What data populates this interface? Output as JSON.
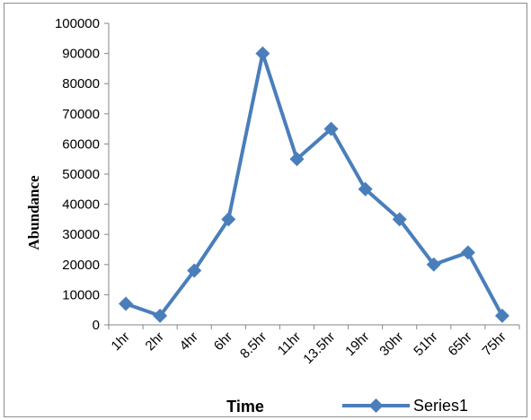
{
  "chart_data": {
    "type": "line",
    "title": "",
    "xlabel": "Time",
    "ylabel": "Abundance",
    "categories": [
      "1hr",
      "2hr",
      "4hr",
      "6hr",
      "8.5hr",
      "11hr",
      "13.5hr",
      "19hr",
      "30hr",
      "51hr",
      "65hr",
      "75hr"
    ],
    "series": [
      {
        "name": "Series1",
        "values": [
          7000,
          3000,
          18000,
          35000,
          90000,
          55000,
          65000,
          45000,
          35000,
          20000,
          24000,
          3000
        ]
      }
    ],
    "ylim": [
      0,
      100000
    ],
    "yticks": [
      0,
      10000,
      20000,
      30000,
      40000,
      50000,
      60000,
      70000,
      80000,
      90000,
      100000
    ],
    "ytick_labels": [
      "0",
      "10000",
      "20000",
      "30000",
      "40000",
      "50000",
      "60000",
      "70000",
      "80000",
      "90000",
      "100000"
    ],
    "grid": false,
    "legend_position": "bottom-right",
    "colors": {
      "series": "#4a7ebb",
      "axis": "#868686",
      "border": "#8c8c8c"
    }
  }
}
